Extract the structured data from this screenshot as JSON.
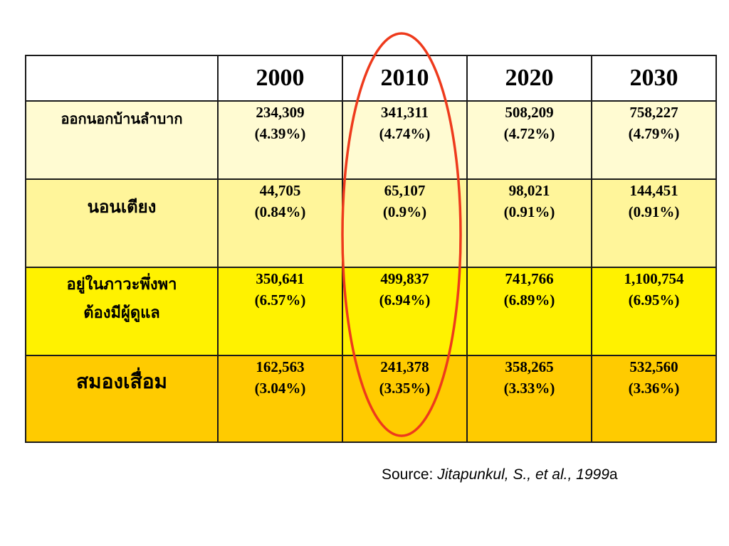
{
  "table": {
    "header": {
      "corner": "",
      "years": [
        "2000",
        "2010",
        "2020",
        "2030"
      ]
    },
    "rows": [
      {
        "label_lines": [
          "ออกนอกบ้านลำบาก"
        ],
        "cells": [
          {
            "value": "234,309",
            "pct": "(4.39%)"
          },
          {
            "value": "341,311",
            "pct": "(4.74%)"
          },
          {
            "value": "508,209",
            "pct": "(4.72%)"
          },
          {
            "value": "758,227",
            "pct": "(4.79%)"
          }
        ]
      },
      {
        "label_lines": [
          "นอนเตียง"
        ],
        "cells": [
          {
            "value": "44,705",
            "pct": "(0.84%)"
          },
          {
            "value": "65,107",
            "pct": "(0.9%)"
          },
          {
            "value": "98,021",
            "pct": "(0.91%)"
          },
          {
            "value": "144,451",
            "pct": "(0.91%)"
          }
        ]
      },
      {
        "label_lines": [
          "อยู่ในภาวะพึ่งพา",
          "ต้องมีผู้ดูแล"
        ],
        "cells": [
          {
            "value": "350,641",
            "pct": "(6.57%)"
          },
          {
            "value": "499,837",
            "pct": "(6.94%)"
          },
          {
            "value": "741,766",
            "pct": "(6.89%)"
          },
          {
            "value": "1,100,754",
            "pct": "(6.95%)"
          }
        ]
      },
      {
        "label_lines": [
          "สมองเสื่อม"
        ],
        "cells": [
          {
            "value": "162,563",
            "pct": "(3.04%)"
          },
          {
            "value": "241,378",
            "pct": "(3.35%)"
          },
          {
            "value": "358,265",
            "pct": "(3.33%)"
          },
          {
            "value": "532,560",
            "pct": "(3.36%)"
          }
        ]
      }
    ]
  },
  "highlight": {
    "column_year": "2010",
    "color": "#EE3A1C"
  },
  "row_colors": [
    "#FFFBD2",
    "#FFF59A",
    "#FFF200",
    "#FFCB00"
  ],
  "source": {
    "prefix": "Source: ",
    "citation": "Jitapunkul, S., et al., 1999",
    "suffix": "a"
  }
}
